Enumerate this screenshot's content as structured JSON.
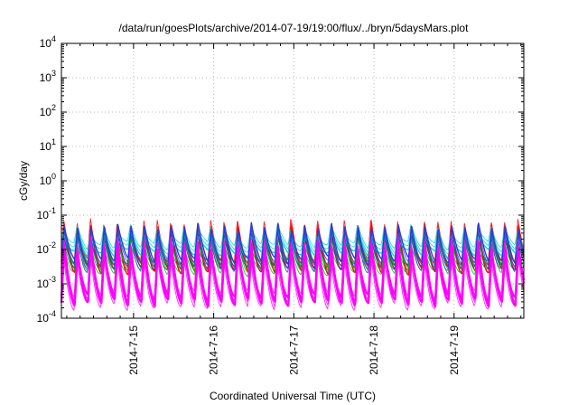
{
  "chart_data": {
    "type": "line",
    "title": "/data/run/goesPlots/archive/2014-07-19/19:00/flux/../bryn/5daysMars.plot",
    "xlabel": "Coordinated Universal Time (UTC)",
    "ylabel": "cGy/day",
    "y_scale": "log",
    "ylim_exponent": [
      -4,
      4
    ],
    "y_ticks": [
      {
        "base": "10",
        "exp": "-4",
        "exponent": -4
      },
      {
        "base": "10",
        "exp": "-3",
        "exponent": -3
      },
      {
        "base": "10",
        "exp": "-2",
        "exponent": -2
      },
      {
        "base": "10",
        "exp": "-1",
        "exponent": -1
      },
      {
        "base": "10",
        "exp": "0",
        "exponent": 0
      },
      {
        "base": "10",
        "exp": "1",
        "exponent": 1
      },
      {
        "base": "10",
        "exp": "2",
        "exponent": 2
      },
      {
        "base": "10",
        "exp": "3",
        "exponent": 3
      },
      {
        "base": "10",
        "exp": "4",
        "exponent": 4
      }
    ],
    "xlim_days": [
      14.1,
      19.87
    ],
    "x_ticks": [
      {
        "label": "2014-7-15",
        "day": 15
      },
      {
        "label": "2014-7-16",
        "day": 16
      },
      {
        "label": "2014-7-17",
        "day": 17
      },
      {
        "label": "2014-7-18",
        "day": 18
      },
      {
        "label": "2014-7-19",
        "day": 19
      }
    ],
    "grid": true,
    "pattern": {
      "cycles_per_day": 6,
      "phase_day": 14.1,
      "band_max_exponent": [
        -1.3,
        -1.9
      ]
    },
    "series": [
      {
        "color": "#ff0000",
        "peak_exponent": -1.42,
        "trough_exponent": -2.62
      },
      {
        "color": "#00bb00",
        "peak_exponent": -1.68,
        "trough_exponent": -2.42
      },
      {
        "color": "#00d8d8",
        "peak_exponent": -1.62,
        "trough_exponent": -2.12
      },
      {
        "color": "#2a3bd6",
        "peak_exponent": -1.32,
        "trough_exponent": -2.32
      },
      {
        "color": "#ff00ff",
        "peak_exponent": -1.9,
        "trough_exponent": -3.55
      },
      {
        "color": "#ff00ff",
        "peak_exponent": -2.05,
        "trough_exponent": -3.42
      }
    ]
  }
}
